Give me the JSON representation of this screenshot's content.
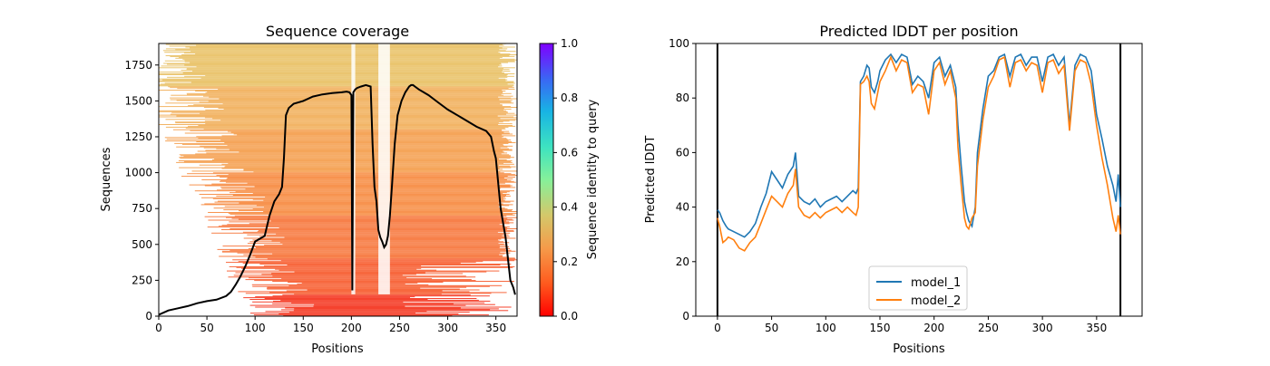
{
  "chart_data": [
    {
      "type": "heatmap",
      "title": "Sequence coverage",
      "xlabel": "Positions",
      "ylabel": "Sequences",
      "xlim": [
        0,
        372
      ],
      "ylim": [
        0,
        1900
      ],
      "xticks": [
        "0",
        "50",
        "100",
        "150",
        "200",
        "250",
        "300",
        "350"
      ],
      "yticks": [
        "0",
        "250",
        "500",
        "750",
        "1000",
        "1250",
        "1500",
        "1750"
      ],
      "colorbar": {
        "label": "Sequence identity to query",
        "range": [
          0,
          1
        ],
        "ticks": [
          "0.0",
          "0.2",
          "0.4",
          "0.6",
          "0.8",
          "1.0"
        ],
        "colormap": "rainbow_r"
      },
      "coverage_line": {
        "x": [
          0,
          10,
          20,
          30,
          40,
          50,
          60,
          70,
          75,
          80,
          85,
          90,
          95,
          100,
          105,
          110,
          115,
          120,
          125,
          128,
          130,
          132,
          135,
          140,
          150,
          160,
          170,
          180,
          190,
          195,
          198,
          200,
          201,
          202,
          204,
          206,
          210,
          215,
          220,
          222,
          224,
          226,
          228,
          230,
          232,
          234,
          236,
          238,
          240,
          242,
          245,
          248,
          252,
          256,
          260,
          262,
          264,
          266,
          270,
          280,
          290,
          300,
          310,
          320,
          330,
          340,
          345,
          348,
          350,
          355,
          360,
          365,
          368,
          370
        ],
        "y": [
          10,
          40,
          55,
          70,
          90,
          105,
          115,
          140,
          170,
          220,
          280,
          350,
          430,
          520,
          540,
          560,
          700,
          800,
          850,
          900,
          1100,
          1400,
          1450,
          1480,
          1500,
          1530,
          1545,
          1555,
          1560,
          1565,
          1560,
          1540,
          180,
          1560,
          1580,
          1590,
          1600,
          1610,
          1600,
          1200,
          900,
          800,
          600,
          550,
          520,
          480,
          500,
          560,
          700,
          900,
          1200,
          1400,
          1500,
          1560,
          1600,
          1610,
          1610,
          1600,
          1580,
          1540,
          1490,
          1440,
          1400,
          1360,
          1320,
          1290,
          1250,
          1150,
          1100,
          750,
          550,
          250,
          200,
          150
        ]
      },
      "color_rows": [
        {
          "from": 0,
          "to": 150,
          "color": "#f5432e"
        },
        {
          "from": 150,
          "to": 400,
          "color": "#f7683e"
        },
        {
          "from": 400,
          "to": 700,
          "color": "#f7804a"
        },
        {
          "from": 700,
          "to": 1000,
          "color": "#f7934f"
        },
        {
          "from": 1000,
          "to": 1300,
          "color": "#f5a55a"
        },
        {
          "from": 1300,
          "to": 1600,
          "color": "#f2b566"
        },
        {
          "from": 1600,
          "to": 1900,
          "color": "#eac570"
        }
      ]
    },
    {
      "type": "line",
      "title": "Predicted lDDT per position",
      "xlabel": "Positions",
      "ylabel": "Predicted lDDT",
      "xlim": [
        -20,
        392
      ],
      "ylim": [
        0,
        100
      ],
      "xticks": [
        "0",
        "50",
        "100",
        "150",
        "200",
        "250",
        "300",
        "350"
      ],
      "yticks": [
        "0",
        "20",
        "40",
        "60",
        "80",
        "100"
      ],
      "vlines": [
        0,
        372
      ],
      "legend": "lower-center",
      "series": [
        {
          "name": "model_1",
          "color": "#1f77b4",
          "x": [
            0,
            2,
            5,
            8,
            10,
            15,
            20,
            25,
            30,
            35,
            40,
            45,
            50,
            55,
            60,
            65,
            70,
            72,
            75,
            80,
            85,
            90,
            95,
            100,
            105,
            110,
            115,
            120,
            125,
            128,
            130,
            132,
            135,
            138,
            140,
            142,
            145,
            148,
            150,
            155,
            160,
            165,
            170,
            175,
            180,
            185,
            190,
            195,
            200,
            205,
            210,
            215,
            220,
            222,
            225,
            228,
            230,
            232,
            235,
            238,
            240,
            245,
            250,
            255,
            260,
            265,
            270,
            275,
            280,
            285,
            290,
            295,
            300,
            305,
            310,
            315,
            320,
            325,
            330,
            335,
            340,
            345,
            350,
            355,
            360,
            365,
            368,
            370,
            372
          ],
          "y": [
            39,
            38,
            35,
            33,
            32,
            31,
            30,
            29,
            31,
            34,
            40,
            45,
            53,
            50,
            47,
            52,
            55,
            60,
            44,
            42,
            41,
            43,
            40,
            42,
            43,
            44,
            42,
            44,
            46,
            45,
            47,
            86,
            88,
            92,
            91,
            84,
            82,
            86,
            90,
            94,
            96,
            93,
            96,
            95,
            85,
            88,
            86,
            80,
            93,
            95,
            88,
            92,
            84,
            70,
            55,
            42,
            38,
            35,
            33,
            40,
            60,
            76,
            88,
            90,
            95,
            96,
            88,
            95,
            96,
            92,
            95,
            95,
            86,
            95,
            96,
            92,
            95,
            70,
            92,
            96,
            95,
            90,
            74,
            65,
            55,
            48,
            42,
            52,
            40
          ]
        },
        {
          "name": "model_2",
          "color": "#ff7f0e",
          "x": [
            0,
            2,
            5,
            8,
            10,
            15,
            20,
            25,
            30,
            35,
            40,
            45,
            50,
            55,
            60,
            65,
            70,
            72,
            75,
            80,
            85,
            90,
            95,
            100,
            105,
            110,
            115,
            120,
            125,
            128,
            130,
            132,
            135,
            138,
            140,
            142,
            145,
            148,
            150,
            155,
            160,
            165,
            170,
            175,
            180,
            185,
            190,
            195,
            200,
            205,
            210,
            215,
            220,
            222,
            225,
            228,
            230,
            232,
            235,
            238,
            240,
            245,
            250,
            255,
            260,
            265,
            270,
            275,
            280,
            285,
            290,
            295,
            300,
            305,
            310,
            315,
            320,
            325,
            330,
            335,
            340,
            345,
            350,
            355,
            360,
            365,
            368,
            370,
            372
          ],
          "y": [
            36,
            33,
            27,
            28,
            29,
            28,
            25,
            24,
            27,
            29,
            34,
            39,
            44,
            42,
            40,
            45,
            48,
            54,
            40,
            37,
            36,
            38,
            36,
            38,
            39,
            40,
            38,
            40,
            38,
            37,
            40,
            85,
            86,
            88,
            86,
            78,
            76,
            82,
            86,
            90,
            95,
            90,
            94,
            93,
            82,
            85,
            84,
            74,
            90,
            93,
            85,
            90,
            80,
            62,
            48,
            36,
            33,
            32,
            36,
            38,
            55,
            72,
            84,
            88,
            94,
            95,
            84,
            93,
            94,
            90,
            93,
            92,
            82,
            93,
            94,
            89,
            92,
            68,
            90,
            94,
            93,
            85,
            70,
            58,
            48,
            36,
            31,
            37,
            30
          ]
        }
      ]
    }
  ]
}
